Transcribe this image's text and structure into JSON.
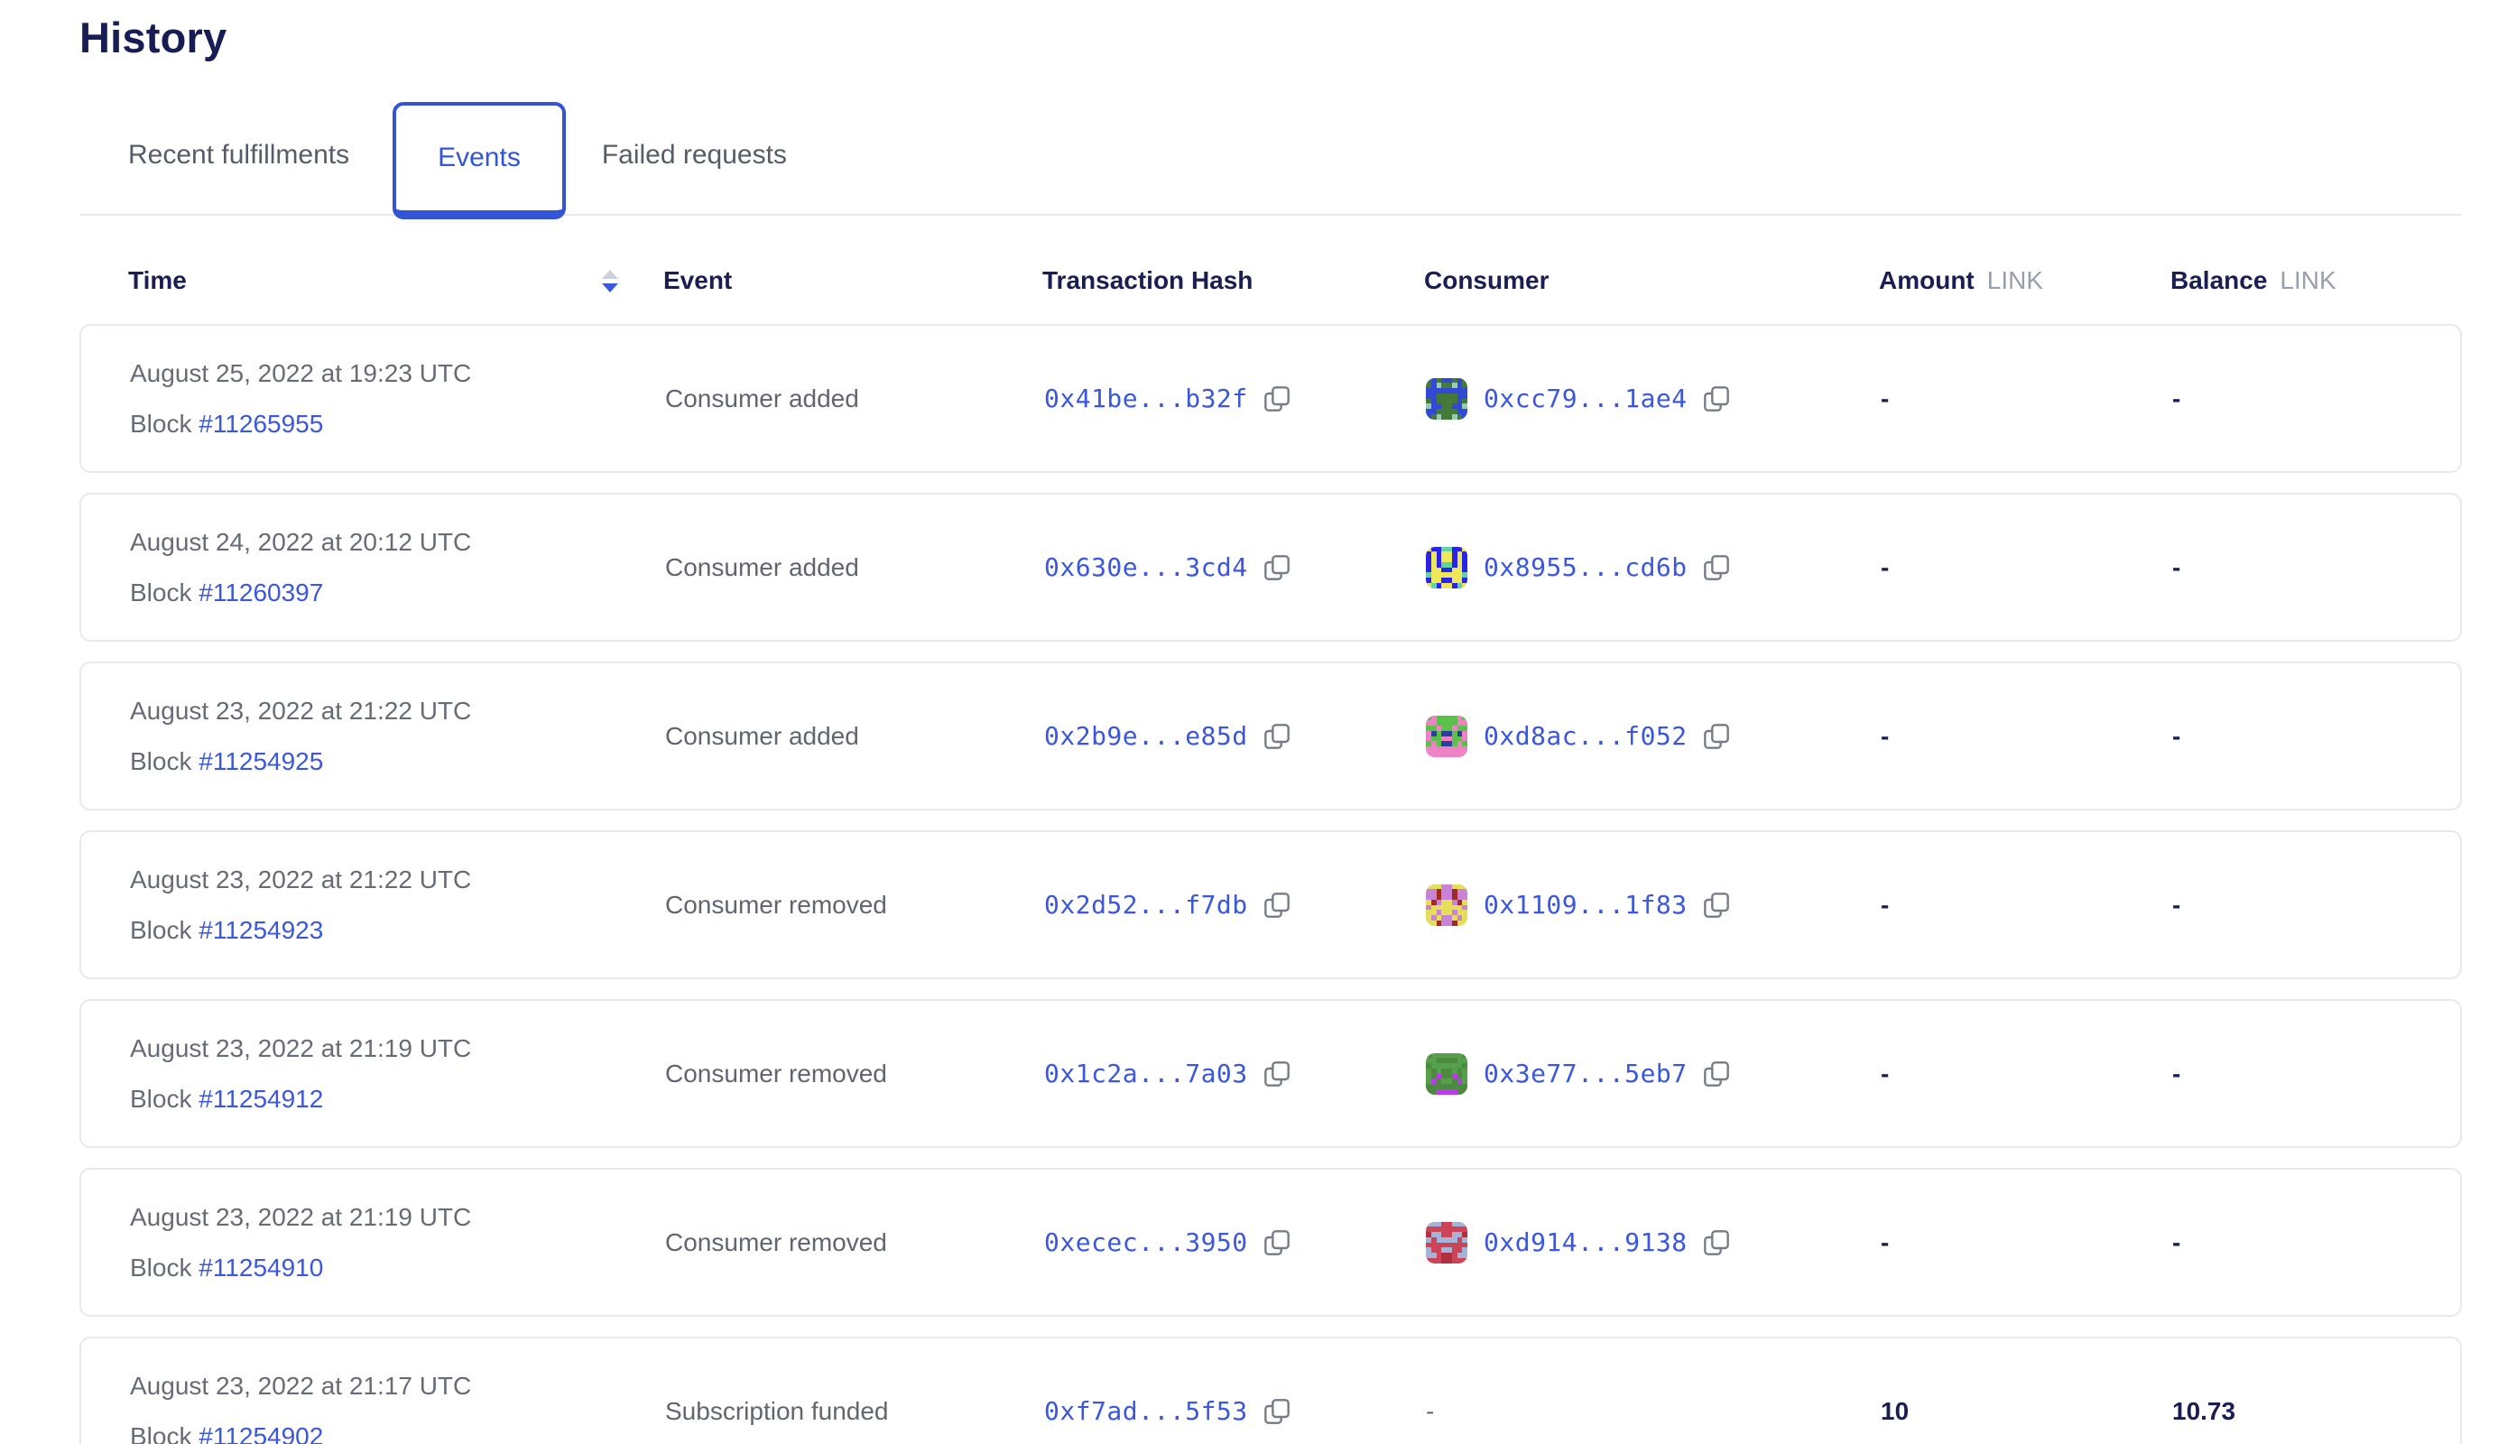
{
  "page": {
    "title": "History"
  },
  "tabs": [
    {
      "label": "Recent fulfillments",
      "active": false
    },
    {
      "label": "Events",
      "active": true
    },
    {
      "label": "Failed requests",
      "active": false
    }
  ],
  "colors": {
    "accent_blue": "#3155d6",
    "link_blue": "#3b57dd",
    "heading_navy": "#191d56",
    "muted_gray": "#666b76"
  },
  "table": {
    "columns": {
      "time": "Time",
      "event": "Event",
      "tx": "Transaction Hash",
      "consumer": "Consumer",
      "amount": "Amount",
      "amount_unit": "LINK",
      "balance": "Balance",
      "balance_unit": "LINK"
    },
    "sort": {
      "column": "time",
      "direction": "desc"
    },
    "rows": [
      {
        "date": "August 25, 2022 at 19:23 UTC",
        "block_label": "Block",
        "block": "#11265955",
        "event": "Consumer added",
        "tx": "0x41be...b32f",
        "consumer": "0xcc79...1ae4",
        "avatar": {
          "bg": "#45793a",
          "fg": "#3349d6",
          "spot": "#95cdb5"
        },
        "amount": "-",
        "balance": "-"
      },
      {
        "date": "August 24, 2022 at 20:12 UTC",
        "block_label": "Block",
        "block": "#11260397",
        "event": "Consumer added",
        "tx": "0x630e...3cd4",
        "consumer": "0x8955...cd6b",
        "avatar": {
          "bg": "#2a23e8",
          "fg": "#efe75a",
          "spot": "#5fd3a2"
        },
        "amount": "-",
        "balance": "-"
      },
      {
        "date": "August 23, 2022 at 21:22 UTC",
        "block_label": "Block",
        "block": "#11254925",
        "event": "Consumer added",
        "tx": "0x2b9e...e85d",
        "consumer": "0xd8ac...f052",
        "avatar": {
          "bg": "#5cc14b",
          "fg": "#ee82c4",
          "spot": "#2b3f9e"
        },
        "amount": "-",
        "balance": "-"
      },
      {
        "date": "August 23, 2022 at 21:22 UTC",
        "block_label": "Block",
        "block": "#11254923",
        "event": "Consumer removed",
        "tx": "0x2d52...f7db",
        "consumer": "0x1109...1f83",
        "avatar": {
          "bg": "#c784d6",
          "fg": "#e5df58",
          "spot": "#a32a24"
        },
        "amount": "-",
        "balance": "-"
      },
      {
        "date": "August 23, 2022 at 21:19 UTC",
        "block_label": "Block",
        "block": "#11254912",
        "event": "Consumer removed",
        "tx": "0x1c2a...7a03",
        "consumer": "0x3e77...5eb7",
        "avatar": {
          "bg": "#57a04b",
          "fg": "#4c8a40",
          "spot": "#b83ae8"
        },
        "amount": "-",
        "balance": "-"
      },
      {
        "date": "August 23, 2022 at 21:19 UTC",
        "block_label": "Block",
        "block": "#11254910",
        "event": "Consumer removed",
        "tx": "0xecec...3950",
        "consumer": "0xd914...9138",
        "avatar": {
          "bg": "#cc4455",
          "fg": "#a3b4d8",
          "spot": "#b03040"
        },
        "amount": "-",
        "balance": "-"
      },
      {
        "date": "August 23, 2022 at 21:17 UTC",
        "block_label": "Block",
        "block": "#11254902",
        "event": "Subscription funded",
        "tx": "0xf7ad...5f53",
        "consumer": "-",
        "amount": "10",
        "balance": "10.73"
      }
    ]
  }
}
